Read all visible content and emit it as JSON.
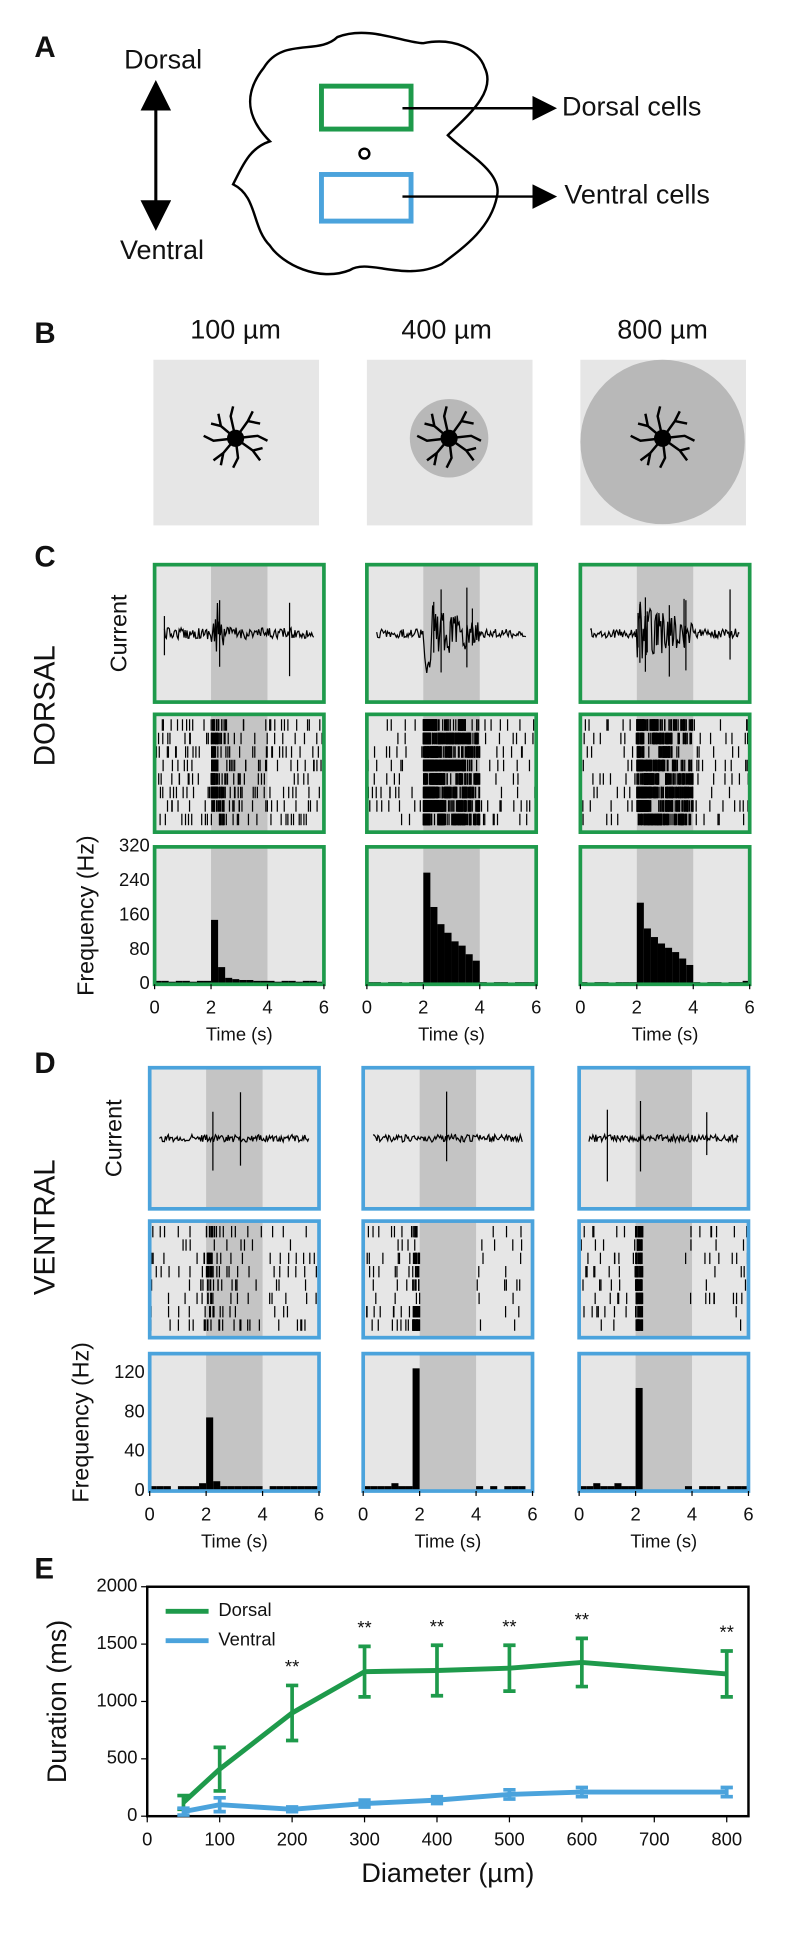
{
  "panel_labels": [
    "A",
    "B",
    "C",
    "D",
    "E"
  ],
  "panel_a": {
    "axis_top": "Dorsal",
    "axis_bottom": "Ventral",
    "dorsal_label": "Dorsal cells",
    "ventral_label": "Ventral cells"
  },
  "panel_b": {
    "sizes": [
      "100 µm",
      "400 µm",
      "800 µm"
    ]
  },
  "panel_c": {
    "title": "DORSAL",
    "current_label": "Current",
    "frequency_label": "Frequency (Hz)",
    "time_label": "Time (s)",
    "color": "#1e9a4b",
    "xlim": [
      0,
      6
    ],
    "xticks": [
      0,
      2,
      4,
      6
    ],
    "ylim": [
      0,
      320
    ],
    "yticks": [
      0,
      80,
      160,
      240,
      320
    ],
    "stimulus": [
      2,
      4
    ],
    "bins": [
      0,
      0.25,
      0.5,
      0.75,
      1,
      1.25,
      1.5,
      1.75,
      2,
      2.25,
      2.5,
      2.75,
      3,
      3.25,
      3.5,
      3.75,
      4,
      4.25,
      4.5,
      4.75,
      5,
      5.25,
      5.5,
      5.75,
      6
    ],
    "histograms": [
      [
        8,
        8,
        6,
        8,
        8,
        6,
        8,
        8,
        150,
        40,
        15,
        12,
        10,
        10,
        8,
        8,
        8,
        6,
        8,
        8,
        6,
        8,
        8,
        6
      ],
      [
        5,
        5,
        4,
        5,
        5,
        4,
        5,
        5,
        260,
        180,
        140,
        120,
        100,
        90,
        70,
        55,
        5,
        4,
        5,
        5,
        4,
        5,
        5,
        5
      ],
      [
        5,
        4,
        5,
        5,
        4,
        5,
        5,
        5,
        190,
        130,
        110,
        95,
        85,
        75,
        60,
        45,
        5,
        4,
        5,
        5,
        4,
        5,
        5,
        8
      ]
    ]
  },
  "panel_d": {
    "title": "VENTRAL",
    "current_label": "Current",
    "frequency_label": "Frequency (Hz)",
    "time_label": "Time (s)",
    "color": "#4ba3dc",
    "xlim": [
      0,
      6
    ],
    "xticks": [
      0,
      2,
      4,
      6
    ],
    "ylim": [
      0,
      140
    ],
    "yticks": [
      0,
      40,
      80,
      120
    ],
    "stimulus": [
      2,
      4
    ],
    "bins": [
      0,
      0.25,
      0.5,
      0.75,
      1,
      1.25,
      1.5,
      1.75,
      2,
      2.25,
      2.5,
      2.75,
      3,
      3.25,
      3.5,
      3.75,
      4,
      4.25,
      4.5,
      4.75,
      5,
      5.25,
      5.5,
      5.75,
      6
    ],
    "histograms": [
      [
        5,
        5,
        5,
        0,
        5,
        5,
        5,
        8,
        75,
        10,
        5,
        5,
        5,
        5,
        5,
        5,
        0,
        5,
        5,
        5,
        5,
        5,
        5,
        5
      ],
      [
        5,
        5,
        5,
        5,
        8,
        5,
        5,
        125,
        0,
        0,
        0,
        0,
        0,
        0,
        0,
        0,
        5,
        0,
        5,
        0,
        5,
        5,
        5,
        0
      ],
      [
        5,
        5,
        8,
        5,
        5,
        8,
        5,
        5,
        105,
        0,
        0,
        0,
        0,
        0,
        0,
        5,
        0,
        5,
        5,
        5,
        0,
        5,
        5,
        5
      ]
    ]
  },
  "chart_data": {
    "type": "line",
    "x_label": "Diameter (µm)",
    "y_label": "Duration (ms)",
    "x": [
      50,
      100,
      200,
      300,
      400,
      500,
      600,
      800
    ],
    "series": [
      {
        "name": "Dorsal",
        "color": "#1e9a4b",
        "values": [
          120,
          410,
          900,
          1260,
          1270,
          1290,
          1340,
          1240
        ],
        "errors": [
          60,
          190,
          240,
          220,
          220,
          200,
          210,
          200
        ]
      },
      {
        "name": "Ventral",
        "color": "#4ba3dc",
        "values": [
          40,
          100,
          60,
          110,
          140,
          190,
          210,
          210
        ],
        "errors": [
          30,
          60,
          20,
          30,
          30,
          40,
          40,
          40
        ]
      }
    ],
    "annotations": [
      {
        "x": 200,
        "text": "**"
      },
      {
        "x": 300,
        "text": "**"
      },
      {
        "x": 400,
        "text": "**"
      },
      {
        "x": 500,
        "text": "**"
      },
      {
        "x": 600,
        "text": "**"
      },
      {
        "x": 800,
        "text": "**"
      }
    ],
    "xlim": [
      0,
      830
    ],
    "xticks": [
      0,
      100,
      200,
      300,
      400,
      500,
      600,
      700,
      800
    ],
    "ylim": [
      0,
      2000
    ],
    "yticks": [
      0,
      500,
      1000,
      1500,
      2000
    ],
    "legend": "upper left"
  }
}
